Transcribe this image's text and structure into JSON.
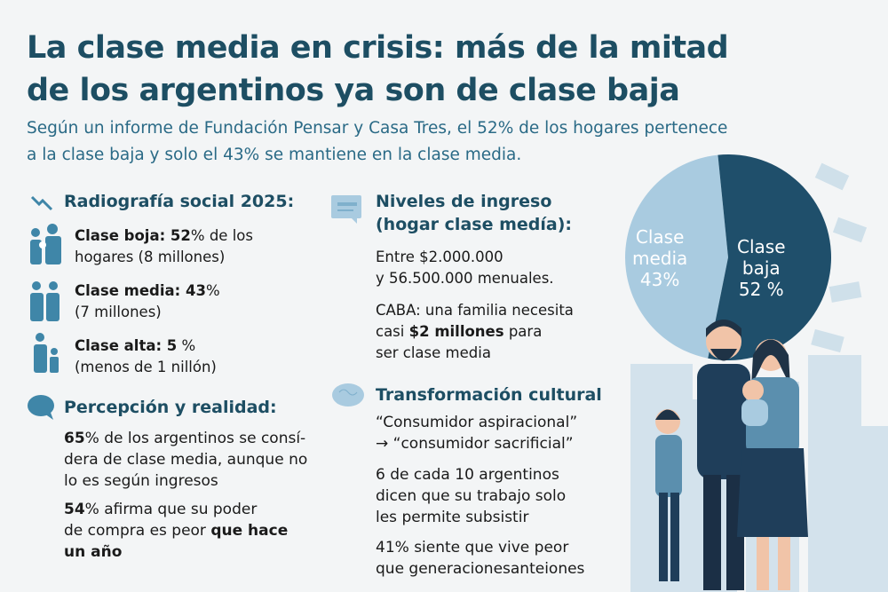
{
  "title": {
    "line1": "La clase media en crisis: más de la mitad",
    "line2": "de los argentinos ya son de clase baja"
  },
  "subtitle": {
    "line1": "Según un informe de Fundación Pensar y Casa Tres, el 52% de los hogares pertenece",
    "line2": "a la clase baja y solo el 43% se mantiene en la clase media."
  },
  "radiografia": {
    "heading": "Radiografía social 2025:",
    "icon": "trend-down-icon",
    "items": [
      {
        "bold": "Clase boja: 52",
        "rest": "% de los",
        "line2": "hogares (8 millones)"
      },
      {
        "bold": "Clase media: 43",
        "rest": "%",
        "line2": "(7 millones)"
      },
      {
        "bold": "Clase alta: 5",
        "rest": " %",
        "line2": "(menos de 1 nillón)"
      }
    ]
  },
  "percepcion": {
    "heading": "Percepción y realidad:",
    "icon": "speech-bubble-icon",
    "p1": {
      "bold": "65",
      "l1": "% de los argentinos se consí-",
      "l2": "dera de clase media, aunque no",
      "l3": "lo es según ingresos"
    },
    "p2": {
      "bold": "54",
      "l1": "% afirma que su poder",
      "l2a": "de compra es peor ",
      "l2b": "que hace",
      "l3": "un año"
    }
  },
  "ingreso": {
    "heading1": "Niveles de ingreso",
    "heading2": "(hogar clase medía):",
    "icon": "payslip-icon",
    "p1": {
      "l1": "Entre $2.000.000",
      "l2": "y 56.500.000 menuales."
    },
    "p2": {
      "l1": "CABA: una familia necesita",
      "l2a": "casi ",
      "l2b": "$2 millones",
      "l2c": " para",
      "l3": "ser clase media"
    }
  },
  "cultural": {
    "heading": "Transformación cultural",
    "icon": "brain-icon",
    "p1": {
      "l1": "“Consumidor aspiracional”",
      "l2": "→ “consumidor sacrificial”"
    },
    "p2": {
      "l1": "6 de cada 10 argentinos",
      "l2": "dicen que su trabajo solo",
      "l3": "les permite subsistir"
    },
    "p3": {
      "l1": "41% siente que vive peor",
      "l2": "que generacionesanteiones"
    }
  },
  "chart_data": {
    "type": "pie",
    "categories": [
      "Clase media",
      "Clase baja"
    ],
    "values": [
      43,
      52
    ],
    "labels": [
      {
        "l1": "Clase",
        "l2": "media",
        "v": "43%"
      },
      {
        "l1": "Clase",
        "l2": "baja",
        "v": "52 %"
      }
    ],
    "colors": [
      "#a9cbe0",
      "#1f4f6b"
    ]
  },
  "colors": {
    "accent": "#1d4e63",
    "icon": "#3f86a8",
    "background": "#f3f5f6"
  }
}
